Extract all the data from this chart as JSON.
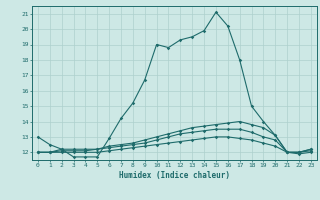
{
  "title": "",
  "xlabel": "Humidex (Indice chaleur)",
  "ylabel": "",
  "bg_color": "#cde8e5",
  "grid_color": "#aed0cd",
  "line_color": "#1e6b6b",
  "xlim": [
    -0.5,
    23.5
  ],
  "ylim": [
    11.5,
    21.5
  ],
  "yticks": [
    12,
    13,
    14,
    15,
    16,
    17,
    18,
    19,
    20,
    21
  ],
  "xticks": [
    0,
    1,
    2,
    3,
    4,
    5,
    6,
    7,
    8,
    9,
    10,
    11,
    12,
    13,
    14,
    15,
    16,
    17,
    18,
    19,
    20,
    21,
    22,
    23
  ],
  "series": [
    {
      "x": [
        0,
        1,
        2,
        3,
        4,
        5,
        6,
        7,
        8,
        9,
        10,
        11,
        12,
        13,
        14,
        15,
        16,
        17,
        18,
        19,
        20,
        21,
        22,
        23
      ],
      "y": [
        13.0,
        12.5,
        12.2,
        11.7,
        11.7,
        11.7,
        12.9,
        14.2,
        15.2,
        16.7,
        19.0,
        18.8,
        19.3,
        19.5,
        19.9,
        21.1,
        20.2,
        18.0,
        15.0,
        14.0,
        13.1,
        12.0,
        12.0,
        12.2
      ]
    },
    {
      "x": [
        0,
        1,
        2,
        3,
        4,
        5,
        6,
        7,
        8,
        9,
        10,
        11,
        12,
        13,
        14,
        15,
        16,
        17,
        18,
        19,
        20,
        21,
        22,
        23
      ],
      "y": [
        12.0,
        12.0,
        12.2,
        12.2,
        12.2,
        12.2,
        12.4,
        12.5,
        12.6,
        12.8,
        13.0,
        13.2,
        13.4,
        13.6,
        13.7,
        13.8,
        13.9,
        14.0,
        13.8,
        13.6,
        13.1,
        12.0,
        12.0,
        12.2
      ]
    },
    {
      "x": [
        0,
        1,
        2,
        3,
        4,
        5,
        6,
        7,
        8,
        9,
        10,
        11,
        12,
        13,
        14,
        15,
        16,
        17,
        18,
        19,
        20,
        21,
        22,
        23
      ],
      "y": [
        12.0,
        12.0,
        12.1,
        12.1,
        12.1,
        12.2,
        12.3,
        12.4,
        12.5,
        12.6,
        12.8,
        13.0,
        13.2,
        13.3,
        13.4,
        13.5,
        13.5,
        13.5,
        13.3,
        13.0,
        12.8,
        12.0,
        12.0,
        12.1
      ]
    },
    {
      "x": [
        0,
        1,
        2,
        3,
        4,
        5,
        6,
        7,
        8,
        9,
        10,
        11,
        12,
        13,
        14,
        15,
        16,
        17,
        18,
        19,
        20,
        21,
        22,
        23
      ],
      "y": [
        12.0,
        12.0,
        12.0,
        12.0,
        12.0,
        12.0,
        12.1,
        12.2,
        12.3,
        12.4,
        12.5,
        12.6,
        12.7,
        12.8,
        12.9,
        13.0,
        13.0,
        12.9,
        12.8,
        12.6,
        12.4,
        12.0,
        11.9,
        12.0
      ]
    }
  ]
}
